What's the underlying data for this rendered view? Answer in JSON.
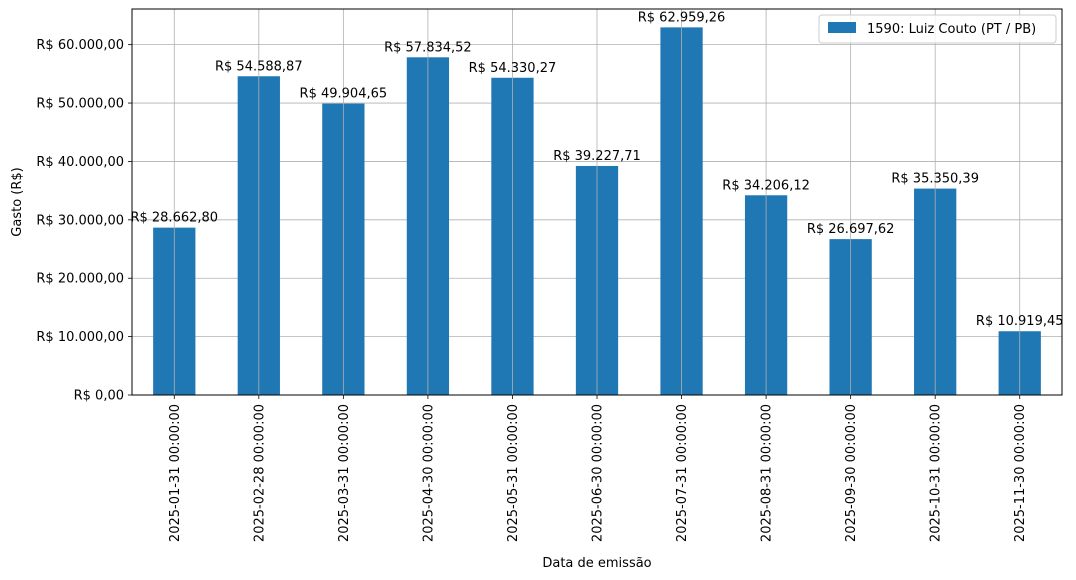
{
  "chart_data": {
    "type": "bar",
    "categories": [
      "2025-01-31 00:00:00",
      "2025-02-28 00:00:00",
      "2025-03-31 00:00:00",
      "2025-04-30 00:00:00",
      "2025-05-31 00:00:00",
      "2025-06-30 00:00:00",
      "2025-07-31 00:00:00",
      "2025-08-31 00:00:00",
      "2025-09-30 00:00:00",
      "2025-10-31 00:00:00",
      "2025-11-30 00:00:00"
    ],
    "series": [
      {
        "name": "1590: Luiz Couto (PT / PB)",
        "color": "#1f77b4",
        "values": [
          28662.8,
          54588.87,
          49904.65,
          57834.52,
          54330.27,
          39227.71,
          62959.26,
          34206.12,
          26697.62,
          35350.39,
          10919.45
        ],
        "data_labels": [
          "R$ 28.662,80",
          "R$ 54.588,87",
          "R$ 49.904,65",
          "R$ 57.834,52",
          "R$ 54.330,27",
          "R$ 39.227,71",
          "R$ 62.959,26",
          "R$ 34.206,12",
          "R$ 26.697,62",
          "R$ 35.350,39",
          "R$ 10.919,45"
        ]
      }
    ],
    "title": "",
    "xlabel": "Data de emissão",
    "ylabel": "Gasto (R$)",
    "ylim": [
      0,
      66107
    ],
    "yticks": [
      0,
      10000,
      20000,
      30000,
      40000,
      50000,
      60000
    ],
    "ytick_labels": [
      "R$ 0,00",
      "R$ 10.000,00",
      "R$ 20.000,00",
      "R$ 30.000,00",
      "R$ 40.000,00",
      "R$ 50.000,00",
      "R$ 60.000,00"
    ],
    "grid": true,
    "legend_position": "top-right"
  }
}
